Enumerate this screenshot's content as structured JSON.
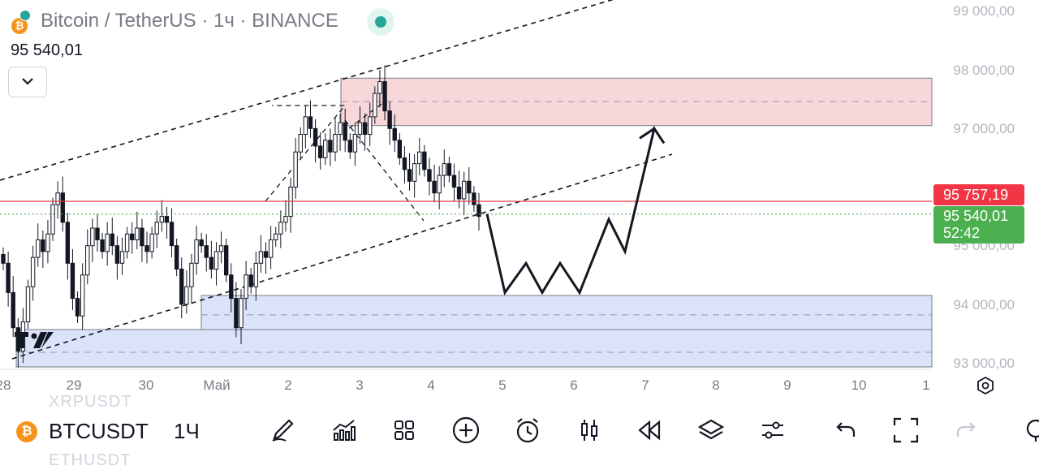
{
  "header": {
    "title": "Bitcoin / TetherUS · 1ч · BINANCE",
    "coin_icon": "bitcoin-icon",
    "price": "95 540,01"
  },
  "price_axis": {
    "labels": [
      "99 000,00",
      "98 000,00",
      "97 000,00",
      "95 000,00",
      "94 000,00",
      "93 000,00"
    ]
  },
  "time_axis": {
    "labels": [
      "28",
      "29",
      "30",
      "Май",
      "2",
      "3",
      "4",
      "5",
      "6",
      "7",
      "8",
      "9",
      "10",
      "1"
    ]
  },
  "price_tags": {
    "alert_price": "95 757,19",
    "last_price": "95 540,01",
    "countdown": "52:42",
    "alert_color": "#f23645",
    "last_color": "#4caf50"
  },
  "chart_data": {
    "type": "candlestick",
    "symbol": "BTCUSDT",
    "interval": "1ч",
    "yrange": [
      92950,
      99150
    ],
    "y_ticks": [
      99000,
      98000,
      97000,
      95000,
      94000,
      93000
    ],
    "ohlc_close_path": [
      94700,
      94200,
      93600,
      93200,
      93700,
      94300,
      94800,
      95100,
      94900,
      95200,
      95700,
      95900,
      95400,
      94700,
      94100,
      93800,
      94500,
      95000,
      95300,
      95100,
      94900,
      95200,
      95000,
      94700,
      94900,
      95200,
      95100,
      95300,
      95000,
      94900,
      95200,
      95400,
      95500,
      95400,
      95000,
      94600,
      94000,
      94300,
      94700,
      95100,
      95000,
      94800,
      94600,
      94900,
      95000,
      94500,
      94100,
      93600,
      94100,
      94500,
      94300,
      94700,
      94900,
      94800,
      95100,
      95200,
      95400,
      95500,
      96000,
      96600,
      96900,
      97200,
      97000,
      96700,
      96500,
      96800,
      96600,
      96900,
      97100,
      96800,
      96600,
      96900,
      97100,
      96900,
      97200,
      97600,
      97800,
      97300,
      97000,
      96800,
      96500,
      96300,
      96100,
      96400,
      96600,
      96300,
      96100,
      95900,
      96200,
      96400,
      96200,
      96000,
      95800,
      96100,
      95900,
      95700,
      95500
    ],
    "zones": [
      {
        "type": "supply",
        "from": 97050,
        "to": 97860,
        "mid": 97460,
        "color": "#f8d7da"
      },
      {
        "type": "demand",
        "from": 93200,
        "to": 94150,
        "mid": 93820,
        "color": "#dbe3fb"
      }
    ],
    "horizontal_lines": [
      {
        "price": 95757.19,
        "color": "#f23645",
        "style": "solid"
      },
      {
        "price": 95540.01,
        "color": "#4caf50",
        "style": "dotted"
      }
    ],
    "forecast_path_prices": [
      95540,
      94200,
      94700,
      94200,
      94700,
      94200,
      95450,
      94900,
      97000,
      96750
    ]
  },
  "toolbar": {
    "symbol_badge": "bitcoin-icon",
    "symbol": "BTCUSDT",
    "interval": "1Ч",
    "ghost_above": "XRPUSDT",
    "ghost_below": "ETHUSDT",
    "tools": [
      "draw-pen-icon",
      "indicators-icon",
      "layouts-icon",
      "add-icon",
      "alert-clock-icon",
      "candles-icon",
      "replay-icon",
      "layers-icon",
      "settings-sliders-icon",
      "undo-icon",
      "fullscreen-icon",
      "redo-icon",
      "watchlist-icon"
    ]
  }
}
